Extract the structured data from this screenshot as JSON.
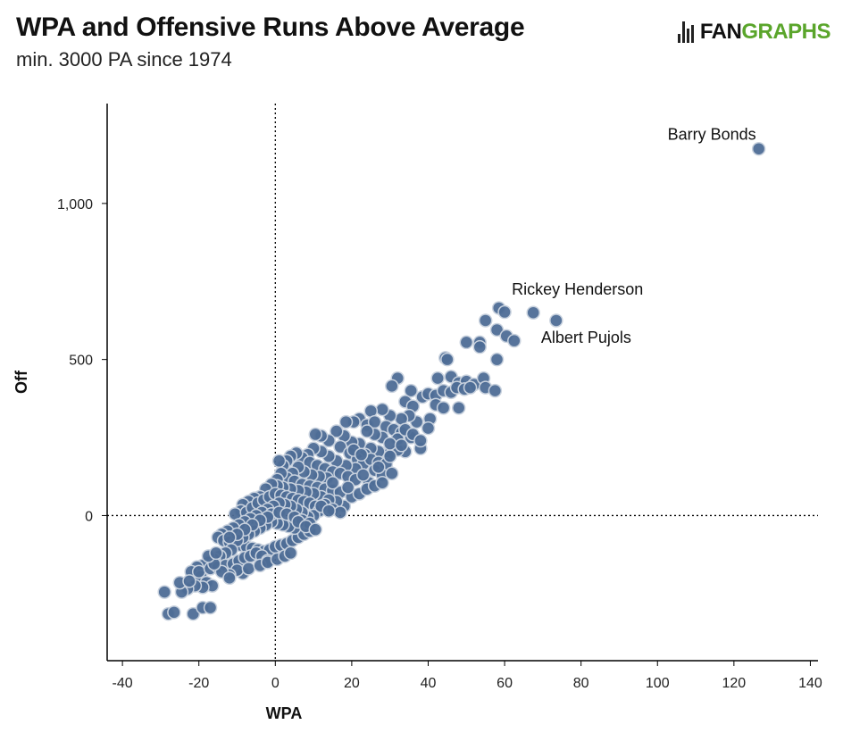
{
  "header": {
    "title": "WPA and Offensive Runs Above Average",
    "subtitle": "min. 3000 PA since 1974",
    "logo_fan": "FAN",
    "logo_graphs": "GRAPHS"
  },
  "colors": {
    "point_fill": "#4e6d96",
    "point_stroke": "#c9d2de",
    "axis": "#000000",
    "logo_green": "#5aa52b"
  },
  "chart_data": {
    "type": "scatter",
    "xlabel": "WPA",
    "ylabel": "Off",
    "xlim": [
      -44,
      142
    ],
    "ylim": [
      -465,
      1320
    ],
    "xticks": [
      -40,
      -20,
      0,
      20,
      40,
      60,
      80,
      100,
      120,
      140
    ],
    "yticks": [
      0,
      500,
      1000
    ],
    "xtick_labels": [
      "-40",
      "-20",
      "0",
      "20",
      "40",
      "60",
      "80",
      "100",
      "120",
      "140"
    ],
    "ytick_labels": [
      "0",
      "500",
      "1,000"
    ],
    "reference_lines": {
      "x": 0,
      "y": 0,
      "style": "dotted"
    },
    "annotations": [
      {
        "text": "Barry Bonds",
        "x": 126.5,
        "y": 1175
      },
      {
        "text": "Rickey Henderson",
        "x": 67.5,
        "y": 650
      },
      {
        "text": "Albert Pujols",
        "x": 73.5,
        "y": 625
      }
    ],
    "points": [
      [
        126.5,
        1175
      ],
      [
        67.5,
        650
      ],
      [
        73.5,
        625
      ],
      [
        58.5,
        665
      ],
      [
        60,
        652
      ],
      [
        55,
        625
      ],
      [
        58,
        595
      ],
      [
        60.5,
        575
      ],
      [
        62.5,
        560
      ],
      [
        50,
        555
      ],
      [
        53.5,
        555
      ],
      [
        53.5,
        540
      ],
      [
        58,
        500
      ],
      [
        44.5,
        505
      ],
      [
        45,
        500
      ],
      [
        32,
        440
      ],
      [
        35.5,
        400
      ],
      [
        42.5,
        440
      ],
      [
        46,
        445
      ],
      [
        48,
        425
      ],
      [
        50,
        430
      ],
      [
        52,
        420
      ],
      [
        54.5,
        440
      ],
      [
        55,
        410
      ],
      [
        57.5,
        400
      ],
      [
        30.5,
        415
      ],
      [
        34,
        365
      ],
      [
        36,
        350
      ],
      [
        38.5,
        380
      ],
      [
        40,
        390
      ],
      [
        42,
        385
      ],
      [
        44,
        400
      ],
      [
        46,
        395
      ],
      [
        47.5,
        410
      ],
      [
        49.5,
        405
      ],
      [
        51,
        410
      ],
      [
        42,
        355
      ],
      [
        44,
        345
      ],
      [
        48,
        345
      ],
      [
        40.5,
        310
      ],
      [
        37,
        300
      ],
      [
        35,
        320
      ],
      [
        33,
        310
      ],
      [
        30,
        320
      ],
      [
        28,
        340
      ],
      [
        25,
        335
      ],
      [
        22,
        310
      ],
      [
        20.5,
        300
      ],
      [
        18.5,
        300
      ],
      [
        24,
        290
      ],
      [
        26,
        300
      ],
      [
        29,
        285
      ],
      [
        31,
        275
      ],
      [
        33,
        265
      ],
      [
        35.5,
        250
      ],
      [
        38,
        215
      ],
      [
        34,
        205
      ],
      [
        32,
        210
      ],
      [
        29.5,
        195
      ],
      [
        27,
        205
      ],
      [
        25,
        215
      ],
      [
        23.5,
        195
      ],
      [
        22,
        230
      ],
      [
        20,
        235
      ],
      [
        18,
        255
      ],
      [
        16,
        270
      ],
      [
        14,
        240
      ],
      [
        12,
        255
      ],
      [
        10.5,
        260
      ],
      [
        17,
        220
      ],
      [
        19.5,
        200
      ],
      [
        21.5,
        180
      ],
      [
        23,
        165
      ],
      [
        25,
        180
      ],
      [
        27,
        170
      ],
      [
        29,
        165
      ],
      [
        26,
        145
      ],
      [
        28,
        130
      ],
      [
        30.5,
        135
      ],
      [
        24.5,
        105
      ],
      [
        21,
        150
      ],
      [
        18.5,
        160
      ],
      [
        16,
        175
      ],
      [
        14,
        190
      ],
      [
        12,
        205
      ],
      [
        10,
        215
      ],
      [
        8.5,
        195
      ],
      [
        7,
        185
      ],
      [
        5.5,
        200
      ],
      [
        4,
        190
      ],
      [
        3,
        175
      ],
      [
        2,
        160
      ],
      [
        1,
        175
      ],
      [
        9,
        170
      ],
      [
        11,
        160
      ],
      [
        13,
        150
      ],
      [
        15,
        140
      ],
      [
        17,
        135
      ],
      [
        19,
        125
      ],
      [
        21,
        115
      ],
      [
        13.5,
        120
      ],
      [
        11.5,
        125
      ],
      [
        9.5,
        130
      ],
      [
        7.5,
        140
      ],
      [
        6,
        155
      ],
      [
        4.5,
        135
      ],
      [
        3,
        120
      ],
      [
        1.5,
        135
      ],
      [
        0.5,
        115
      ],
      [
        5,
        110
      ],
      [
        7,
        100
      ],
      [
        9,
        95
      ],
      [
        11,
        90
      ],
      [
        13,
        85
      ],
      [
        15,
        80
      ],
      [
        17,
        75
      ],
      [
        12,
        60
      ],
      [
        10,
        70
      ],
      [
        8,
        75
      ],
      [
        6,
        80
      ],
      [
        4,
        85
      ],
      [
        2,
        90
      ],
      [
        0.5,
        95
      ],
      [
        -1,
        100
      ],
      [
        -2.5,
        85
      ],
      [
        -4,
        60
      ],
      [
        -5.5,
        55
      ],
      [
        -7,
        45
      ],
      [
        -8.5,
        35
      ],
      [
        -9,
        15
      ],
      [
        -10.5,
        5
      ],
      [
        -7.5,
        10
      ],
      [
        -6,
        25
      ],
      [
        -4.5,
        40
      ],
      [
        -3,
        50
      ],
      [
        -1.5,
        60
      ],
      [
        0,
        70
      ],
      [
        1.5,
        65
      ],
      [
        3,
        60
      ],
      [
        4.5,
        55
      ],
      [
        6,
        50
      ],
      [
        7.5,
        45
      ],
      [
        9,
        40
      ],
      [
        10.5,
        30
      ],
      [
        11.5,
        15
      ],
      [
        10,
        0
      ],
      [
        8.5,
        -5
      ],
      [
        7,
        10
      ],
      [
        5.5,
        20
      ],
      [
        4,
        30
      ],
      [
        2.5,
        35
      ],
      [
        1,
        40
      ],
      [
        -0.5,
        30
      ],
      [
        -2,
        20
      ],
      [
        -3.5,
        10
      ],
      [
        -5,
        0
      ],
      [
        -6.5,
        -10
      ],
      [
        -8,
        -20
      ],
      [
        -9.5,
        -30
      ],
      [
        -11,
        -40
      ],
      [
        -12.5,
        -50
      ],
      [
        -14,
        -60
      ],
      [
        -15,
        -70
      ],
      [
        -13.5,
        -80
      ],
      [
        -12,
        -85
      ],
      [
        -10.5,
        -90
      ],
      [
        -9,
        -95
      ],
      [
        -7.5,
        -100
      ],
      [
        -6,
        -105
      ],
      [
        -4.5,
        -110
      ],
      [
        -3,
        -115
      ],
      [
        -1.5,
        -110
      ],
      [
        0,
        -100
      ],
      [
        1.5,
        -95
      ],
      [
        3,
        -90
      ],
      [
        4.5,
        -80
      ],
      [
        6,
        -70
      ],
      [
        7.5,
        -60
      ],
      [
        9,
        -50
      ],
      [
        5,
        -40
      ],
      [
        3.5,
        -35
      ],
      [
        2,
        -30
      ],
      [
        0.5,
        -25
      ],
      [
        -1,
        -20
      ],
      [
        -2.5,
        -30
      ],
      [
        -4,
        -40
      ],
      [
        -5.5,
        -50
      ],
      [
        -7,
        -60
      ],
      [
        -8.5,
        -70
      ],
      [
        -10,
        -80
      ],
      [
        -11.5,
        -110
      ],
      [
        -13,
        -120
      ],
      [
        -14.5,
        -130
      ],
      [
        -16,
        -140
      ],
      [
        -17.5,
        -150
      ],
      [
        -19,
        -160
      ],
      [
        -20.5,
        -165
      ],
      [
        -22,
        -180
      ],
      [
        -19.5,
        -195
      ],
      [
        -18,
        -215
      ],
      [
        -16.5,
        -225
      ],
      [
        -19,
        -230
      ],
      [
        -21,
        -225
      ],
      [
        -23,
        -235
      ],
      [
        -24.5,
        -245
      ],
      [
        -25,
        -215
      ],
      [
        -22.5,
        -210
      ],
      [
        -20,
        -180
      ],
      [
        -17,
        -170
      ],
      [
        -15,
        -165
      ],
      [
        -13,
        -160
      ],
      [
        -11,
        -155
      ],
      [
        -9.5,
        -145
      ],
      [
        -8,
        -135
      ],
      [
        -6.5,
        -130
      ],
      [
        -5,
        -120
      ],
      [
        -3.5,
        -130
      ],
      [
        -2,
        -145
      ],
      [
        -8.5,
        -185
      ],
      [
        -10,
        -175
      ],
      [
        -12,
        -190
      ],
      [
        -14,
        -180
      ],
      [
        -16,
        -155
      ],
      [
        -17.5,
        -130
      ],
      [
        -15.5,
        -120
      ],
      [
        -29,
        -245
      ],
      [
        -28,
        -315
      ],
      [
        -26.5,
        -310
      ],
      [
        -21.5,
        -315
      ],
      [
        -19,
        -295
      ],
      [
        -17,
        -295
      ],
      [
        -12,
        -200
      ],
      [
        -7,
        -170
      ],
      [
        -4,
        -160
      ],
      [
        -2,
        -150
      ],
      [
        0.5,
        -140
      ],
      [
        2.5,
        -130
      ],
      [
        4,
        -120
      ],
      [
        18,
        30
      ],
      [
        16,
        45
      ],
      [
        14,
        50
      ],
      [
        13,
        35
      ],
      [
        15,
        20
      ],
      [
        17,
        10
      ],
      [
        -1,
        5
      ],
      [
        1,
        10
      ],
      [
        3,
        5
      ],
      [
        5,
        -5
      ],
      [
        7,
        -15
      ],
      [
        9,
        -25
      ],
      [
        -2,
        -5
      ],
      [
        -4,
        -15
      ],
      [
        -6,
        -30
      ],
      [
        -8,
        -45
      ],
      [
        -10,
        -60
      ],
      [
        -12,
        -70
      ],
      [
        20,
        60
      ],
      [
        22,
        70
      ],
      [
        24,
        85
      ],
      [
        26,
        95
      ],
      [
        28,
        105
      ],
      [
        30,
        190
      ],
      [
        32,
        245
      ],
      [
        34,
        275
      ],
      [
        36,
        260
      ],
      [
        38,
        240
      ],
      [
        40,
        280
      ],
      [
        28,
        250
      ],
      [
        26,
        260
      ],
      [
        24,
        270
      ],
      [
        30,
        230
      ],
      [
        33,
        225
      ],
      [
        20.5,
        210
      ],
      [
        22.5,
        195
      ],
      [
        15,
        105
      ],
      [
        19,
        90
      ],
      [
        23,
        130
      ],
      [
        27,
        155
      ],
      [
        12,
        30
      ],
      [
        14,
        15
      ],
      [
        6,
        -20
      ],
      [
        8,
        -35
      ],
      [
        10.5,
        -45
      ]
    ]
  }
}
